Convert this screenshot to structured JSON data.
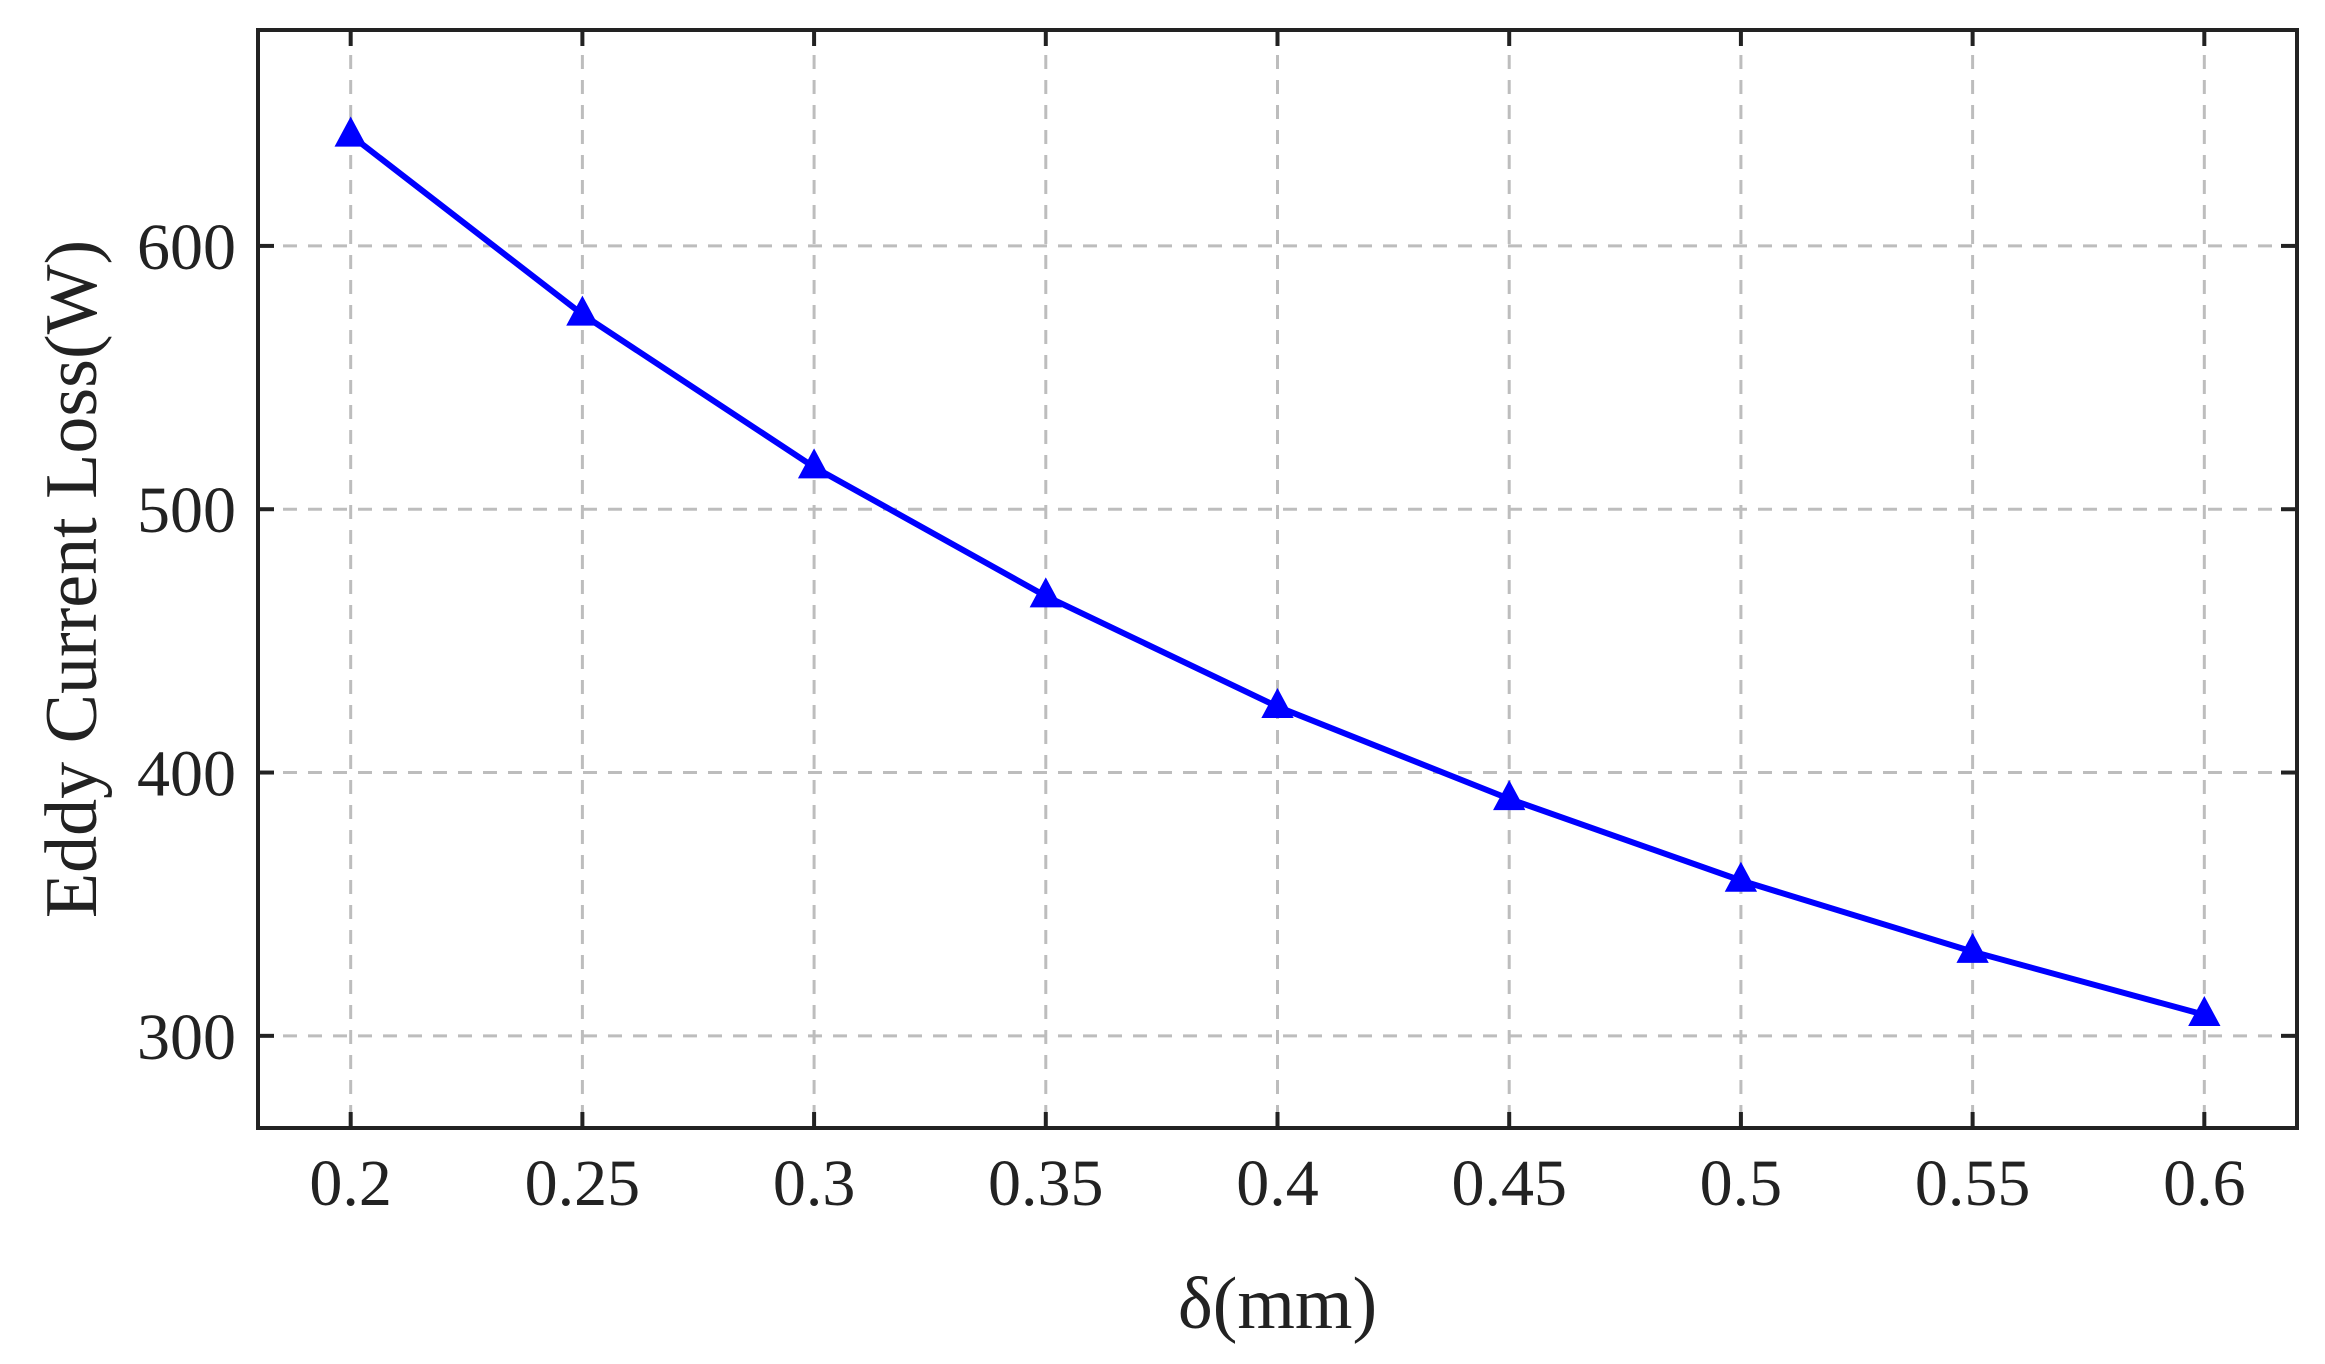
{
  "chart_data": {
    "type": "line",
    "title": "",
    "xlabel": "δ(mm)",
    "ylabel": "Eddy Current Loss(W)",
    "x": [
      0.2,
      0.25,
      0.3,
      0.35,
      0.4,
      0.45,
      0.5,
      0.55,
      0.6
    ],
    "x_tick_labels": [
      "0.2",
      "0.25",
      "0.3",
      "0.35",
      "0.4",
      "0.45",
      "0.5",
      "0.55",
      "0.6"
    ],
    "xlim": [
      0.18,
      0.62
    ],
    "ylim": [
      265,
      682
    ],
    "y_ticks": [
      300,
      400,
      500,
      600
    ],
    "y_tick_labels": [
      "300",
      "400",
      "500",
      "600"
    ],
    "grid": true,
    "grid_style": "dashed",
    "series": [
      {
        "marker": "triangle",
        "color": "#0000ff",
        "values": [
          642,
          574,
          516,
          467,
          425,
          390,
          359,
          332,
          308
        ]
      }
    ]
  }
}
